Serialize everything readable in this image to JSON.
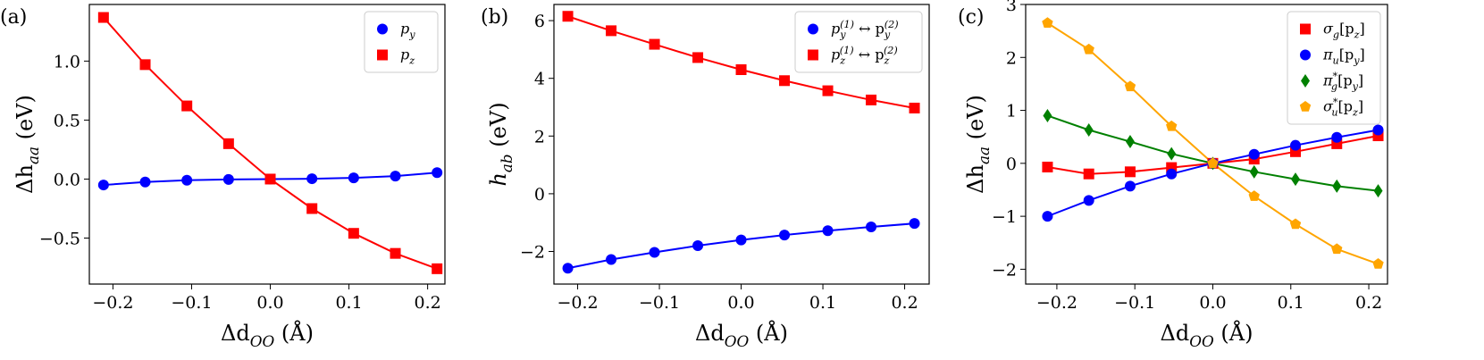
{
  "chart_data": [
    {
      "type": "line",
      "panel_label": "(a)",
      "xlabel": [
        "Δd",
        "OO",
        " (Å)"
      ],
      "xlabel_format": [
        "",
        "sub",
        ""
      ],
      "ylabel": [
        "Δh",
        "aa",
        " (eV)"
      ],
      "ylabel_format": [
        "",
        "sub",
        ""
      ],
      "x": [
        -0.212,
        -0.159,
        -0.106,
        -0.053,
        0,
        0.053,
        0.106,
        0.159,
        0.212
      ],
      "series": [
        {
          "name": [
            "p",
            "y"
          ],
          "name_format": [
            "",
            "sub"
          ],
          "color": "#0000ff",
          "marker": "circle",
          "values": [
            -0.05,
            -0.025,
            -0.01,
            -0.003,
            0,
            0.003,
            0.01,
            0.025,
            0.055
          ]
        },
        {
          "name": [
            "p",
            "z"
          ],
          "name_format": [
            "",
            "sub"
          ],
          "color": "#ff0000",
          "marker": "square",
          "values": [
            1.37,
            0.97,
            0.62,
            0.3,
            0,
            -0.25,
            -0.46,
            -0.63,
            -0.76
          ]
        }
      ],
      "xlim": [
        -0.23,
        0.222
      ],
      "ylim": [
        -0.89,
        1.48
      ],
      "xticks": [
        {
          "value": -0.2,
          "label": "−0.2"
        },
        {
          "value": -0.1,
          "label": "−0.1"
        },
        {
          "value": 0,
          "label": "0.0"
        },
        0.1,
        0.2
      ],
      "yticks": [
        {
          "value": -0.5,
          "label": "−0.5"
        },
        {
          "value": 0,
          "label": "0.0"
        },
        0.5,
        {
          "value": 1,
          "label": "1.0"
        }
      ],
      "legend": "upper right"
    },
    {
      "type": "line",
      "panel_label": "(b)",
      "xlabel": [
        "Δd",
        "OO",
        " (Å)"
      ],
      "xlabel_format": [
        "",
        "sub",
        ""
      ],
      "ylabel": [
        "h",
        "ab",
        " (eV)"
      ],
      "ylabel_format": [
        "",
        "sub",
        ""
      ],
      "x": [
        -0.212,
        -0.159,
        -0.106,
        -0.053,
        0,
        0.053,
        0.106,
        0.159,
        0.212
      ],
      "series": [
        {
          "name": [
            "p",
            "y",
            "(1)",
            " ↔ p",
            "y",
            "(2)"
          ],
          "name_format": [
            "",
            "sub",
            "sup",
            "",
            "sub",
            "sup"
          ],
          "color": "#0000ff",
          "marker": "circle",
          "values": [
            -2.58,
            -2.28,
            -2.03,
            -1.8,
            -1.6,
            -1.43,
            -1.28,
            -1.15,
            -1.03
          ]
        },
        {
          "name": [
            "p",
            "z",
            "(1)",
            " ↔ p",
            "z",
            "(2)"
          ],
          "name_format": [
            "",
            "sub",
            "sup",
            "",
            "sub",
            "sup"
          ],
          "color": "#ff0000",
          "marker": "square",
          "values": [
            6.15,
            5.65,
            5.18,
            4.72,
            4.3,
            3.92,
            3.57,
            3.25,
            2.97
          ]
        }
      ],
      "xlim": [
        -0.229,
        0.23
      ],
      "ylim": [
        -3.13,
        6.56
      ],
      "xticks": [
        {
          "value": -0.2,
          "label": "−0.2"
        },
        {
          "value": -0.1,
          "label": "−0.1"
        },
        {
          "value": 0,
          "label": "0.0"
        },
        0.1,
        0.2
      ],
      "yticks": [
        {
          "value": -2,
          "label": "−2"
        },
        0,
        2,
        4,
        6
      ],
      "legend": "upper right"
    },
    {
      "type": "line",
      "panel_label": "(c)",
      "xlabel": [
        "Δd",
        "OO",
        " (Å)"
      ],
      "xlabel_format": [
        "",
        "sub",
        ""
      ],
      "ylabel": [
        "Δh",
        "aa",
        " (eV)"
      ],
      "ylabel_format": [
        "",
        "sub",
        ""
      ],
      "x": [
        -0.212,
        -0.159,
        -0.106,
        -0.053,
        0,
        0.053,
        0.106,
        0.159,
        0.212
      ],
      "series": [
        {
          "name": [
            "σ",
            "g",
            "[p",
            "z",
            "]"
          ],
          "name_format": [
            "",
            "sub",
            "",
            "sub",
            ""
          ],
          "color": "#ff0000",
          "marker": "square",
          "values": [
            -0.07,
            -0.2,
            -0.16,
            -0.08,
            0,
            0.08,
            0.22,
            0.37,
            0.52
          ]
        },
        {
          "name": [
            "π",
            "u",
            "[p",
            "y",
            "]"
          ],
          "name_format": [
            "",
            "sub",
            "",
            "sub",
            ""
          ],
          "color": "#0000ff",
          "marker": "circle",
          "values": [
            -1.0,
            -0.7,
            -0.43,
            -0.2,
            0,
            0.17,
            0.34,
            0.49,
            0.63
          ]
        },
        {
          "name": [
            "π",
            "*",
            "g",
            "[p",
            "y",
            "]"
          ],
          "name_format": [
            "",
            "sup",
            "sub",
            "",
            "sub",
            ""
          ],
          "color": "#008000",
          "marker": "diamond",
          "values": [
            0.9,
            0.63,
            0.41,
            0.18,
            0,
            -0.16,
            -0.3,
            -0.43,
            -0.52
          ]
        },
        {
          "name": [
            "σ",
            "*",
            "u",
            "[p",
            "z",
            "]"
          ],
          "name_format": [
            "",
            "sup",
            "sub",
            "",
            "sub",
            ""
          ],
          "color": "#ffa500",
          "marker": "pentagon",
          "values": [
            2.65,
            2.15,
            1.45,
            0.7,
            0,
            -0.62,
            -1.15,
            -1.62,
            -1.9
          ]
        }
      ],
      "xlim": [
        -0.24,
        0.224
      ],
      "ylim": [
        -2.28,
        3.0
      ],
      "xticks": [
        {
          "value": -0.2,
          "label": "−0.2"
        },
        {
          "value": -0.1,
          "label": "−0.1"
        },
        {
          "value": 0,
          "label": "0.0"
        },
        0.1,
        0.2
      ],
      "yticks": [
        {
          "value": -2,
          "label": "−2"
        },
        {
          "value": -1,
          "label": "−1"
        },
        0,
        1,
        2,
        3
      ],
      "legend": "upper right"
    }
  ]
}
